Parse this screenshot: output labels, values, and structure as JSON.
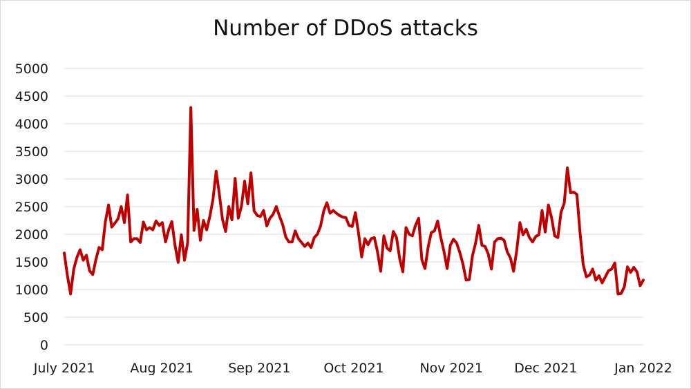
{
  "chart_data": {
    "type": "line",
    "title": "Number of DDoS attacks",
    "xlabel": "",
    "ylabel": "",
    "ylim": [
      0,
      5000
    ],
    "yticks": [
      0,
      500,
      1000,
      1500,
      2000,
      2500,
      3000,
      3500,
      4000,
      4500,
      5000
    ],
    "xticks": [
      "July 2021",
      "Aug 2021",
      "Sep 2021",
      "Oct 2021",
      "Nov 2021",
      "Dec 2021",
      "Jan 2022"
    ],
    "grid": true,
    "legend": "none",
    "series": [
      {
        "color": "#c00000",
        "x_start": "2021-07-01",
        "x_end": "2022-01-01",
        "values": [
          1660,
          1250,
          920,
          1370,
          1580,
          1720,
          1530,
          1620,
          1340,
          1270,
          1540,
          1760,
          1720,
          2230,
          2530,
          2130,
          2200,
          2280,
          2500,
          2210,
          2710,
          1860,
          1920,
          1920,
          1850,
          2220,
          2080,
          2120,
          2080,
          2240,
          2160,
          2210,
          1860,
          2080,
          2230,
          1800,
          1490,
          1990,
          1530,
          1850,
          4290,
          2070,
          2450,
          1890,
          2250,
          2080,
          2320,
          2630,
          3140,
          2730,
          2270,
          2050,
          2500,
          2260,
          3010,
          2290,
          2510,
          2960,
          2550,
          3110,
          2420,
          2340,
          2320,
          2430,
          2150,
          2290,
          2360,
          2500,
          2330,
          2180,
          1950,
          1860,
          1860,
          2060,
          1920,
          1850,
          1780,
          1840,
          1760,
          1940,
          2000,
          2150,
          2420,
          2570,
          2380,
          2430,
          2380,
          2340,
          2310,
          2300,
          2160,
          2140,
          2390,
          2020,
          1590,
          1920,
          1810,
          1920,
          1940,
          1680,
          1330,
          1970,
          1750,
          1700,
          2050,
          1940,
          1560,
          1320,
          2120,
          2000,
          1970,
          2160,
          2290,
          1540,
          1380,
          1770,
          2030,
          2060,
          2240,
          1940,
          1690,
          1380,
          1800,
          1910,
          1840,
          1670,
          1460,
          1170,
          1180,
          1610,
          1840,
          2160,
          1800,
          1780,
          1640,
          1370,
          1860,
          1920,
          1930,
          1890,
          1680,
          1570,
          1330,
          1710,
          2210,
          1990,
          2090,
          1940,
          1860,
          1960,
          1990,
          2430,
          2040,
          2530,
          2300,
          1970,
          1940,
          2400,
          2560,
          3200,
          2750,
          2760,
          2720,
          2030,
          1450,
          1230,
          1260,
          1370,
          1170,
          1250,
          1120,
          1230,
          1340,
          1370,
          1480,
          920,
          930,
          1050,
          1410,
          1310,
          1400,
          1320,
          1070,
          1170
        ]
      }
    ]
  }
}
